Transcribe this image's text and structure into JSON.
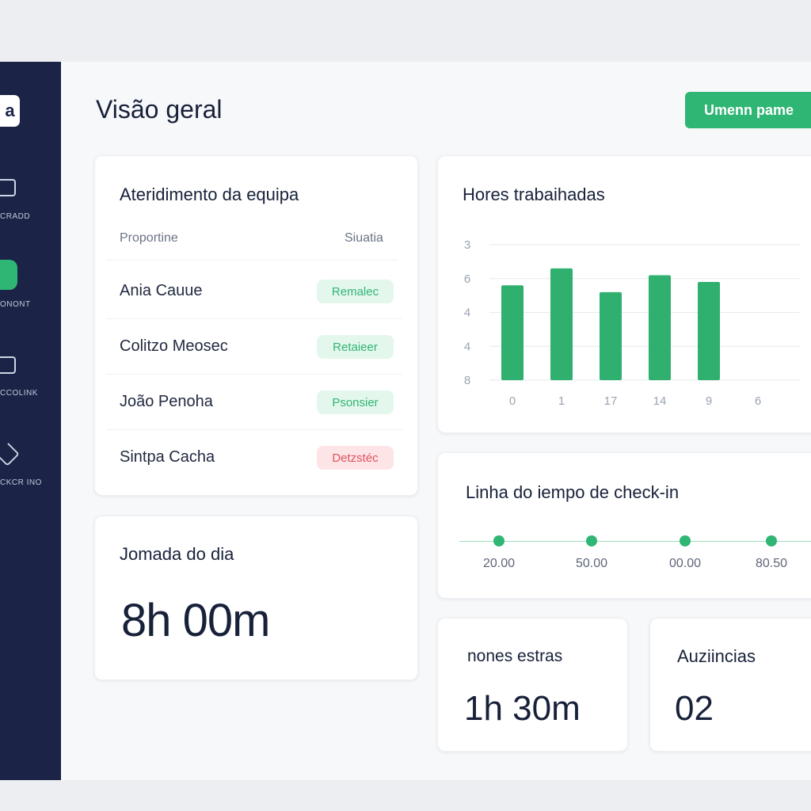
{
  "sidebar": {
    "logo": "a",
    "items": [
      "CRADD",
      "ONONT",
      "CCOLINK",
      "CKCR INO"
    ]
  },
  "header": {
    "title": "Visão geral",
    "button": "Umenn pame"
  },
  "team_card": {
    "title": "Ateridimento da equipa",
    "columns": [
      "Proportine",
      "Siuatia"
    ],
    "rows": [
      {
        "name": "Ania Cauue",
        "status": "Remalec",
        "color": "#2fb574",
        "background": "#e4f7ec"
      },
      {
        "name": "Colitzo Meosec",
        "status": "Retaieer",
        "color": "#2fb574",
        "background": "#e4f7ec"
      },
      {
        "name": "João Penoha",
        "status": "Psonsier",
        "color": "#2fb574",
        "background": "#e4f7ec"
      },
      {
        "name": "Sintpa Cacha",
        "status": "Detzstéc",
        "color": "#e0525f",
        "background": "#fde4e6"
      }
    ]
  },
  "day_card": {
    "title": "Jomada do dia",
    "value": "8h 00m"
  },
  "hours_card": {
    "title": "Hores trabaihadas",
    "chart_data": {
      "type": "bar",
      "categories": [
        "0",
        "1",
        "17",
        "14",
        "9",
        "6"
      ],
      "values": [
        2.8,
        3.3,
        2.6,
        3.1,
        2.9,
        null
      ],
      "color": "#2fb06f",
      "ylim": [
        0,
        4
      ],
      "yticks": [
        {
          "value": 4,
          "label": "3"
        },
        {
          "value": 3,
          "label": "6"
        },
        {
          "value": 2,
          "label": "4"
        },
        {
          "value": 1,
          "label": "4"
        },
        {
          "value": 0,
          "label": "8"
        }
      ],
      "grid": true
    }
  },
  "timeline_card": {
    "title": "Linha do iempo de check-in",
    "points": [
      "20.00",
      "50.00",
      "00.00",
      "80.50"
    ]
  },
  "extra_card": {
    "title": "nones estras",
    "value": "1h 30m"
  },
  "absence_card": {
    "title": "Auziincias",
    "value": "02"
  }
}
